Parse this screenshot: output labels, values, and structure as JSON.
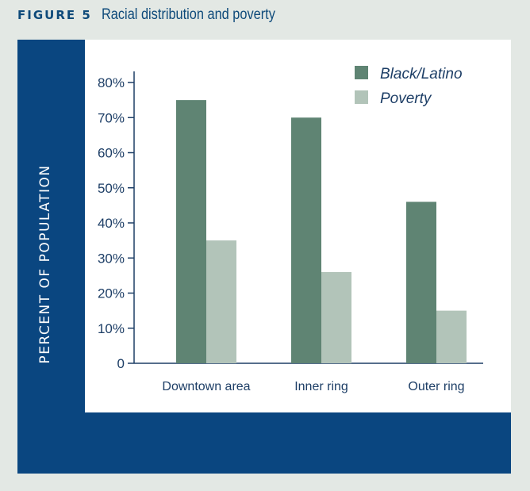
{
  "figure": {
    "label": "FIGURE 5",
    "title": "Racial distribution and poverty"
  },
  "colors": {
    "background": "#e3e8e4",
    "panel": "#0a4680",
    "plot_background": "#ffffff",
    "axis": "#1d3e66",
    "series_black_latino": "#5f8473",
    "series_poverty": "#b2c4b9"
  },
  "chart_data": {
    "type": "bar",
    "title": "Racial distribution and poverty",
    "xlabel": "",
    "ylabel": "PERCENT OF POPULATION",
    "categories": [
      "Downtown area",
      "Inner ring",
      "Outer ring"
    ],
    "series": [
      {
        "name": "Black/Latino",
        "values": [
          75,
          70,
          46
        ],
        "color": "#5f8473"
      },
      {
        "name": "Poverty",
        "values": [
          35,
          26,
          15
        ],
        "color": "#b2c4b9"
      }
    ],
    "ylim": [
      0,
      80
    ],
    "yticks": [
      0,
      10,
      20,
      30,
      40,
      50,
      60,
      70,
      80
    ],
    "ytick_labels": [
      "0",
      "10%",
      "20%",
      "30%",
      "40%",
      "50%",
      "60%",
      "70%",
      "80%"
    ],
    "grid": false,
    "legend_position": "top-right"
  }
}
